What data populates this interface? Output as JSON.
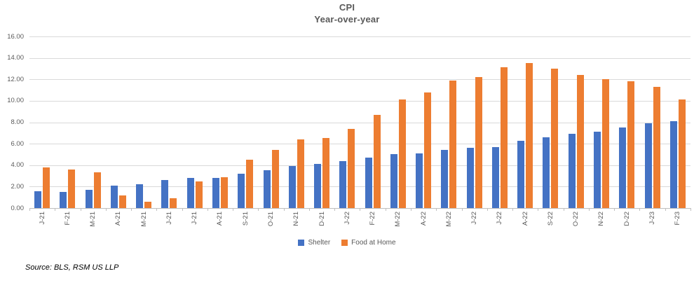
{
  "chart": {
    "title": "CPI",
    "subtitle": "Year-over-year"
  },
  "source_note": "Source: BLS, RSM US LLP",
  "colors": {
    "shelter": "#4472C4",
    "food_at_home": "#ED7D31",
    "gridline": "#D9D9D9",
    "axis_line": "#BFBFBF",
    "text": "#595959"
  },
  "chart_data": {
    "type": "bar",
    "title": "CPI",
    "subtitle": "Year-over-year",
    "categories": [
      "J-21",
      "F-21",
      "M-21",
      "A-21",
      "M-21",
      "J-21",
      "J-21",
      "A-21",
      "S-21",
      "O-21",
      "N-21",
      "D-21",
      "J-22",
      "F-22",
      "M-22",
      "A-22",
      "M-22",
      "J-22",
      "J-22",
      "A-22",
      "S-22",
      "O-22",
      "N-22",
      "D-22",
      "J-23",
      "F-23"
    ],
    "series": [
      {
        "name": "Shelter",
        "color": "#4472C4",
        "values": [
          1.6,
          1.5,
          1.7,
          2.1,
          2.2,
          2.6,
          2.8,
          2.8,
          3.2,
          3.5,
          3.9,
          4.1,
          4.4,
          4.7,
          5.0,
          5.1,
          5.4,
          5.6,
          5.7,
          6.3,
          6.6,
          6.9,
          7.1,
          7.5,
          7.9,
          8.1
        ]
      },
      {
        "name": "Food at Home",
        "color": "#ED7D31",
        "values": [
          3.8,
          3.6,
          3.3,
          1.2,
          0.6,
          0.9,
          2.5,
          2.9,
          4.5,
          5.4,
          6.4,
          6.5,
          7.4,
          8.7,
          10.1,
          10.8,
          11.9,
          12.2,
          13.1,
          13.5,
          13.0,
          12.4,
          12.0,
          11.8,
          11.3,
          10.1
        ]
      }
    ],
    "ylim": [
      0,
      16
    ],
    "y_tick_labels": [
      "16.00",
      "14.00",
      "12.00",
      "10.00",
      "8.00",
      "6.00",
      "4.00",
      "2.00",
      "0.00"
    ],
    "grid": true,
    "legend_position": "bottom",
    "x_label_rotation": 90
  }
}
